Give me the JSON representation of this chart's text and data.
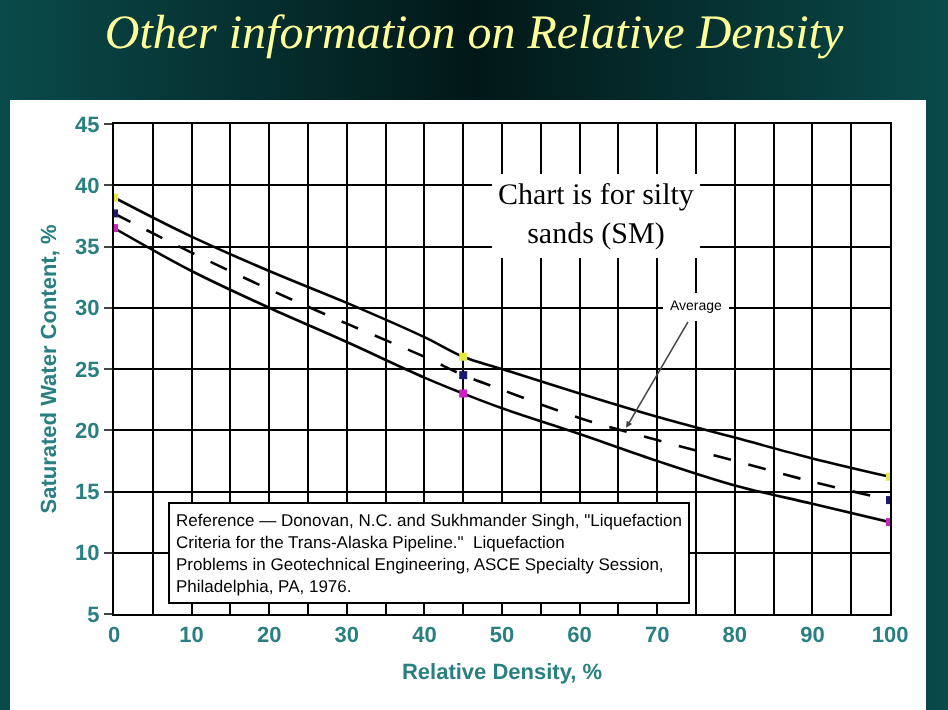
{
  "chart_data": {
    "type": "line",
    "title": "Other information on Relative Density",
    "xlabel": "Relative Density, %",
    "ylabel": "Saturated Water Content, %",
    "x": [
      0,
      10,
      20,
      30,
      40,
      45,
      50,
      60,
      70,
      80,
      90,
      100
    ],
    "series": [
      {
        "color": "#000000",
        "line_style": "solid",
        "values": [
          39,
          35.8,
          33,
          30.4,
          27.6,
          26,
          25,
          23,
          21.1,
          19.4,
          17.7,
          16.2
        ]
      },
      {
        "color": "#000000",
        "line_style": "dashed",
        "values": [
          37.7,
          34.5,
          31.5,
          28.7,
          26,
          24.5,
          23.3,
          21,
          19.2,
          17.5,
          15.8,
          14.3
        ]
      },
      {
        "color": "#000000",
        "line_style": "solid",
        "values": [
          36.5,
          33,
          30,
          27.2,
          24.3,
          23,
          21.8,
          19.7,
          17.5,
          15.5,
          14,
          12.5
        ]
      },
      {
        "type": "scatter",
        "marker": "square",
        "color": "#e8e840",
        "x": [
          0,
          45,
          100
        ],
        "values": [
          39,
          26,
          16.2
        ]
      },
      {
        "type": "scatter",
        "marker": "square",
        "color": "#1a1a6e",
        "x": [
          0,
          45,
          100
        ],
        "values": [
          37.7,
          24.5,
          14.3
        ]
      },
      {
        "type": "scatter",
        "marker": "square",
        "color": "#d020c0",
        "x": [
          0,
          45,
          100
        ],
        "values": [
          36.5,
          23,
          12.5
        ]
      }
    ],
    "xlim": [
      0,
      100
    ],
    "ylim": [
      5,
      45
    ],
    "xticks": [
      0,
      {
        "value": 5,
        "label": null
      },
      10,
      {
        "value": 15,
        "label": null
      },
      20,
      {
        "value": 25,
        "label": null
      },
      30,
      {
        "value": 35,
        "label": null
      },
      40,
      {
        "value": 45,
        "label": null
      },
      50,
      {
        "value": 55,
        "label": null
      },
      60,
      {
        "value": 65,
        "label": null
      },
      70,
      {
        "value": 75,
        "label": null
      },
      80,
      {
        "value": 85,
        "label": null
      },
      90,
      {
        "value": 95,
        "label": null
      },
      100
    ],
    "yticks": [
      5,
      10,
      15,
      20,
      25,
      30,
      35,
      40,
      45
    ],
    "grid": true,
    "marker": "none",
    "annotations": [
      "Chart is for silty sands (SM)",
      {
        "text": "Average",
        "x": 66,
        "y": 20.2
      },
      "Reference — Donovan, N.C. and Sukhmander Singh, \"Liquefaction Criteria for the Trans-Alaska Pipeline.\"  Liquefaction Problems in Geotechnical Engineering, ASCE Specialty Session, Philadelphia, PA, 1976."
    ]
  }
}
